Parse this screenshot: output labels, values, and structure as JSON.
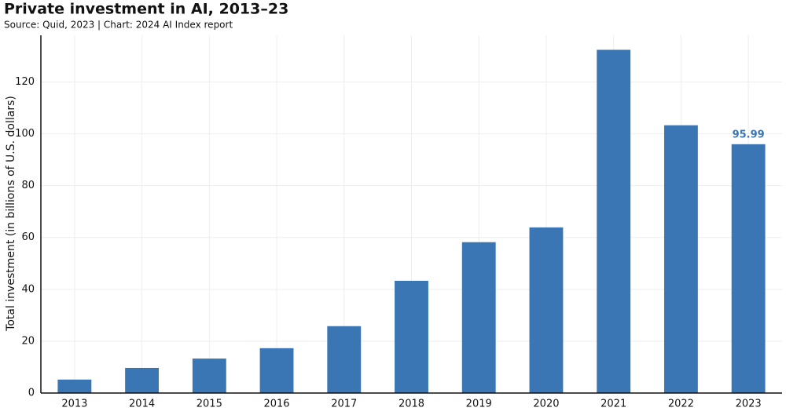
{
  "chart_data": {
    "type": "bar",
    "title": "Private investment in AI, 2013–23",
    "subtitle": "Source: Quid, 2023 | Chart: 2024 AI Index report",
    "y_label": "Total investment (in billions of U.S. dollars)",
    "categories": [
      "2013",
      "2014",
      "2015",
      "2016",
      "2017",
      "2018",
      "2019",
      "2020",
      "2021",
      "2022",
      "2023"
    ],
    "values": [
      5.2,
      9.7,
      13.3,
      17.3,
      25.8,
      43.3,
      58.2,
      63.9,
      132.4,
      103.3,
      95.99
    ],
    "value_labels": [
      null,
      null,
      null,
      null,
      null,
      null,
      null,
      null,
      null,
      null,
      "95.99"
    ],
    "color": "#3a76b4",
    "ylim": [
      0,
      138
    ],
    "yticks": [
      0,
      20,
      40,
      60,
      80,
      100,
      120
    ],
    "grid": true
  }
}
